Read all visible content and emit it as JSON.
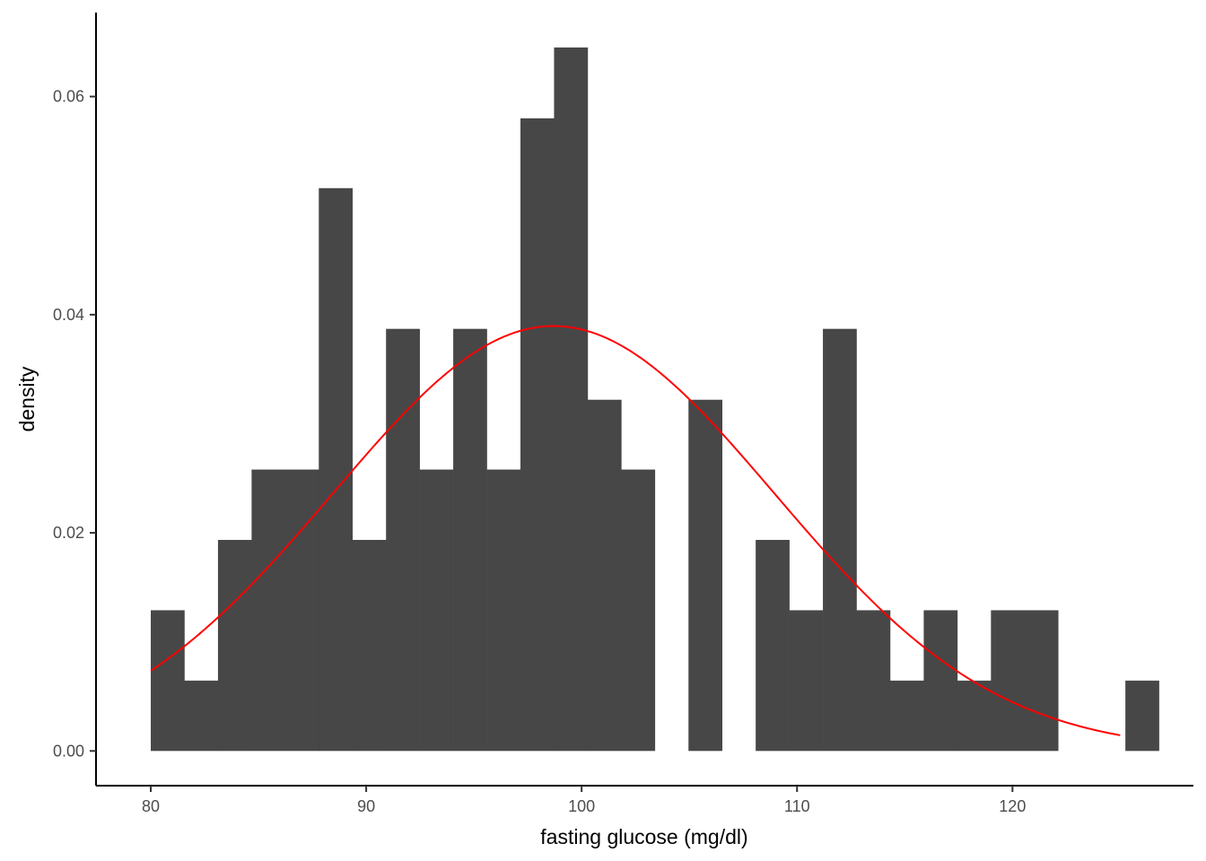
{
  "chart_data": {
    "type": "bar",
    "subtype": "histogram",
    "title": "",
    "xlabel": "fasting glucose (mg/dl)",
    "ylabel": "density",
    "xlim": [
      77.5,
      128.4
    ],
    "ylim": [
      -0.0031,
      0.0677
    ],
    "x_ticks": [
      80,
      90,
      100,
      110,
      120
    ],
    "x_tick_labels": [
      "80",
      "90",
      "100",
      "110",
      "120"
    ],
    "y_ticks": [
      0.0,
      0.02,
      0.04,
      0.06
    ],
    "y_tick_labels": [
      "0.00",
      "0.02",
      "0.04",
      "0.06"
    ],
    "grid": false,
    "bar_color": "#474747",
    "bins": [
      {
        "x0": 80.0,
        "x1": 81.56,
        "density": 0.0129
      },
      {
        "x0": 81.56,
        "x1": 83.12,
        "density": 0.00645
      },
      {
        "x0": 83.12,
        "x1": 84.68,
        "density": 0.01935
      },
      {
        "x0": 84.68,
        "x1": 86.24,
        "density": 0.0258
      },
      {
        "x0": 86.24,
        "x1": 87.8,
        "density": 0.0258
      },
      {
        "x0": 87.8,
        "x1": 89.36,
        "density": 0.0516
      },
      {
        "x0": 89.36,
        "x1": 90.92,
        "density": 0.01935
      },
      {
        "x0": 90.92,
        "x1": 92.48,
        "density": 0.0387
      },
      {
        "x0": 92.48,
        "x1": 94.04,
        "density": 0.0258
      },
      {
        "x0": 94.04,
        "x1": 95.6,
        "density": 0.0387
      },
      {
        "x0": 95.6,
        "x1": 97.16,
        "density": 0.0258
      },
      {
        "x0": 97.16,
        "x1": 98.72,
        "density": 0.058
      },
      {
        "x0": 98.72,
        "x1": 100.28,
        "density": 0.0645
      },
      {
        "x0": 100.28,
        "x1": 101.84,
        "density": 0.0322
      },
      {
        "x0": 101.84,
        "x1": 103.4,
        "density": 0.0258
      },
      {
        "x0": 103.4,
        "x1": 104.96,
        "density": 0.0
      },
      {
        "x0": 104.96,
        "x1": 106.52,
        "density": 0.0322
      },
      {
        "x0": 106.52,
        "x1": 108.08,
        "density": 0.0
      },
      {
        "x0": 108.08,
        "x1": 109.64,
        "density": 0.01935
      },
      {
        "x0": 109.64,
        "x1": 111.2,
        "density": 0.0129
      },
      {
        "x0": 111.2,
        "x1": 112.76,
        "density": 0.0387
      },
      {
        "x0": 112.76,
        "x1": 114.32,
        "density": 0.0129
      },
      {
        "x0": 114.32,
        "x1": 115.88,
        "density": 0.00645
      },
      {
        "x0": 115.88,
        "x1": 117.44,
        "density": 0.0129
      },
      {
        "x0": 117.44,
        "x1": 119.0,
        "density": 0.00645
      },
      {
        "x0": 119.0,
        "x1": 120.56,
        "density": 0.0129
      },
      {
        "x0": 120.56,
        "x1": 122.12,
        "density": 0.0129
      },
      {
        "x0": 122.12,
        "x1": 123.68,
        "density": 0.0
      },
      {
        "x0": 123.68,
        "x1": 125.24,
        "density": 0.0
      },
      {
        "x0": 125.24,
        "x1": 126.8,
        "density": 0.00645
      }
    ],
    "series": [
      {
        "type": "line",
        "color": "#ff0000",
        "description": "normal density curve",
        "mean": 98.7,
        "sd": 10.24,
        "x_range": [
          80.0,
          125.0
        ]
      }
    ]
  }
}
